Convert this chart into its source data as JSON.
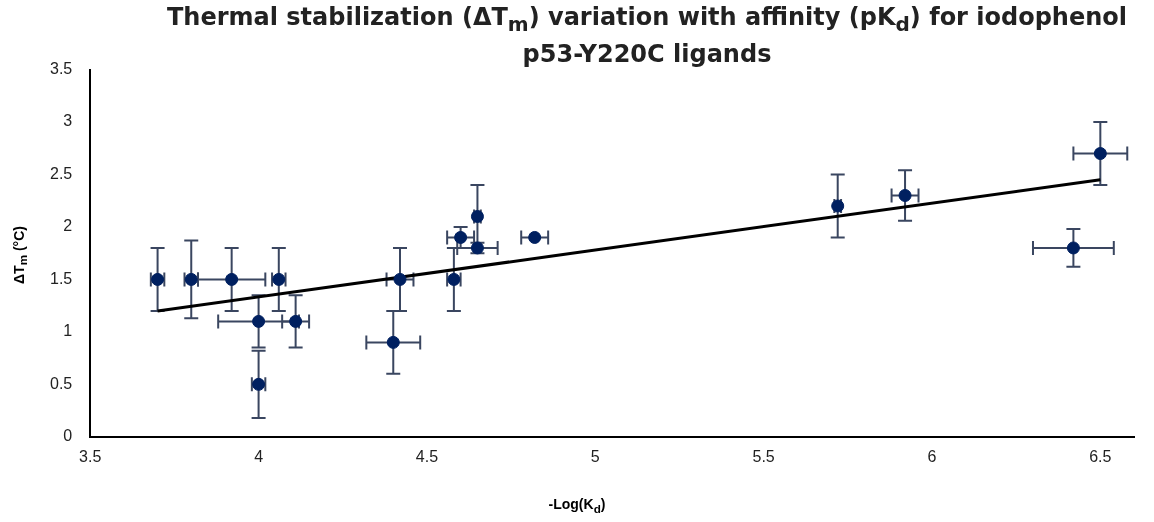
{
  "chart_data": {
    "type": "scatter",
    "title": "Thermal stabilization (ΔT$_{m}$) variation with affinity (pK$_{d}$) for iodophenol p53-Y220C ligands",
    "xlabel": "-Log(K$_{d}$)",
    "ylabel": "ΔT$_{m}$ (°C)",
    "xlim": [
      3.5,
      6.6
    ],
    "xticks": [
      3.5,
      4,
      4.5,
      5,
      5.5,
      6,
      6.5
    ],
    "ylim": [
      0,
      3.5
    ],
    "yticks": [
      0,
      0.5,
      1,
      1.5,
      2,
      2.5,
      3,
      3.5
    ],
    "grid": false,
    "legend": false,
    "series": [
      {
        "color": "#002060",
        "marker": "circle",
        "x": [
          3.7,
          3.8,
          3.92,
          4.0,
          4.0,
          4.06,
          4.11,
          4.4,
          4.42,
          4.58,
          4.6,
          4.65,
          4.65,
          4.82,
          5.72,
          5.92,
          6.42,
          6.5
        ],
        "values": [
          1.5,
          1.5,
          1.5,
          1.1,
          0.5,
          1.5,
          1.1,
          0.9,
          1.5,
          1.5,
          1.9,
          2.1,
          1.8,
          1.9,
          2.2,
          2.3,
          1.8,
          2.7
        ],
        "errors": [
          0.3,
          0.37,
          0.3,
          0.25,
          0.32,
          0.3,
          0.25,
          0.3,
          0.3,
          0.3,
          0.1,
          0.3,
          0.05,
          null,
          0.3,
          0.24,
          0.18,
          0.3
        ],
        "xerrors": [
          0.02,
          0.02,
          0.1,
          0.12,
          0.02,
          0.02,
          0.04,
          0.08,
          0.04,
          0.02,
          0.04,
          0.01,
          0.06,
          0.04,
          0.01,
          0.04,
          0.12,
          0.08
        ]
      },
      {
        "type": "line",
        "color": "#000000",
        "marker": "none",
        "x": [
          3.7,
          6.5
        ],
        "values": [
          1.2,
          2.45
        ]
      }
    ]
  }
}
